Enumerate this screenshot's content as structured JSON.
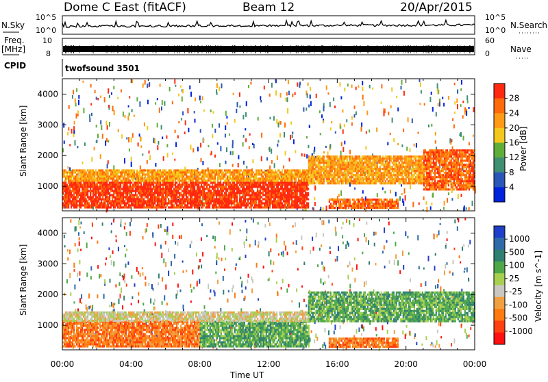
{
  "header": {
    "station": "Dome C East (fitACF)",
    "beam": "Beam 12",
    "date": "20/Apr/2015"
  },
  "top_panels": {
    "nsky_label": "N.Sky",
    "nsky_ticks": [
      "10^5",
      "10^0"
    ],
    "nsearch_label": "N.Search",
    "nsearch_ticks": [
      "10^5",
      "10^0"
    ],
    "freq_label": "Freq.",
    "freq_unit": "[MHz]",
    "freq_ticks": [
      "10",
      "8"
    ],
    "nave_label": "Nave",
    "nave_ticks": [
      "60",
      "0"
    ],
    "cpid_label": "CPID",
    "cpid_value": "twofsound 3501"
  },
  "colors": {
    "power_scale": [
      "#0022dd",
      "#2a56b8",
      "#3f8f73",
      "#5fae3a",
      "#f3c81c",
      "#ff9a14",
      "#ff6a0a",
      "#ff2a10"
    ],
    "velocity_scale": [
      "#1f3fc8",
      "#2f6aa8",
      "#2f8070",
      "#4ea84a",
      "#a8d050",
      "#c8c8c0",
      "#f0a040",
      "#ff7a10",
      "#ff4010",
      "#ff1010"
    ]
  },
  "chart_data": [
    {
      "type": "heatmap",
      "name": "power-panel",
      "xlabel": "",
      "ylabel": "Slant Range [km]",
      "x_ticks": [
        "00:00",
        "04:00",
        "08:00",
        "12:00",
        "16:00",
        "20:00",
        "00:00"
      ],
      "y_ticks": [
        1000,
        2000,
        3000,
        4000
      ],
      "ylim": [
        200,
        4500
      ],
      "xlim_hours": [
        0,
        24
      ],
      "colorbar_label": "Power [dB]",
      "colorbar_ticks": [
        4,
        8,
        12,
        16,
        20,
        24,
        28
      ],
      "regions": [
        {
          "t0": 0,
          "t1": 14.3,
          "r0": 300,
          "r1": 1150,
          "value_db": 28
        },
        {
          "t0": 0,
          "t1": 14.3,
          "r0": 1150,
          "r1": 1550,
          "value_db": 20
        },
        {
          "t0": 14.3,
          "t1": 21,
          "r0": 1100,
          "r1": 2000,
          "value_db": 20
        },
        {
          "t0": 15.5,
          "t1": 19.5,
          "r0": 300,
          "r1": 600,
          "value_db": 24
        },
        {
          "t0": 21,
          "t1": 24,
          "r0": 900,
          "r1": 2200,
          "value_db": 24
        }
      ]
    },
    {
      "type": "heatmap",
      "name": "velocity-panel",
      "xlabel": "Time UT",
      "ylabel": "Slant Range [km]",
      "x_ticks": [
        "00:00",
        "04:00",
        "08:00",
        "12:00",
        "16:00",
        "20:00",
        "00:00"
      ],
      "y_ticks": [
        1000,
        2000,
        3000,
        4000
      ],
      "ylim": [
        200,
        4500
      ],
      "xlim_hours": [
        0,
        24
      ],
      "colorbar_label": "Velocity [m s^-1]",
      "colorbar_ticks": [
        1000,
        500,
        100,
        25,
        -25,
        -100,
        -500,
        -1000
      ],
      "regions": [
        {
          "t0": 0,
          "t1": 8,
          "r0": 300,
          "r1": 1150,
          "value_ms": -100
        },
        {
          "t0": 8,
          "t1": 14.3,
          "r0": 300,
          "r1": 1150,
          "value_ms": 100
        },
        {
          "t0": 0,
          "t1": 14.3,
          "r0": 1150,
          "r1": 1450,
          "value_ms": 0
        },
        {
          "t0": 14.3,
          "t1": 24,
          "r0": 1100,
          "r1": 2100,
          "value_ms": 100
        },
        {
          "t0": 15.5,
          "t1": 19.5,
          "r0": 300,
          "r1": 600,
          "value_ms": -100
        }
      ]
    }
  ]
}
